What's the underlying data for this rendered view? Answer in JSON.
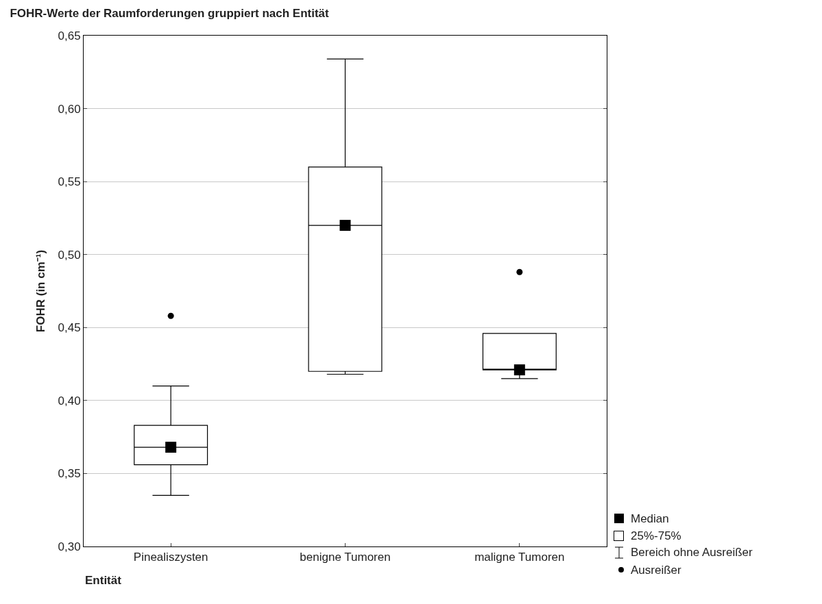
{
  "chart_data": {
    "type": "box",
    "title": "FOHR-Werte der Raumforderungen gruppiert nach Entität",
    "xlabel": "Entität",
    "ylabel": "FOHR (in cm⁻¹)",
    "categories": [
      "Pinealiszysten",
      "benigne Tumoren",
      "maligne Tumoren"
    ],
    "boxes": [
      {
        "low": 0.335,
        "q1": 0.356,
        "median": 0.368,
        "q3": 0.383,
        "high": 0.41,
        "outliers": [
          0.458
        ]
      },
      {
        "low": 0.418,
        "q1": 0.42,
        "median": 0.52,
        "q3": 0.56,
        "high": 0.634
      },
      {
        "low": 0.415,
        "q1": 0.421,
        "median": 0.421,
        "q3": 0.446,
        "high": 0.446,
        "outliers": [
          0.488
        ]
      }
    ],
    "color": "#000000",
    "ylim": [
      0.3,
      0.65
    ],
    "yticks": [
      {
        "value": 0.3,
        "label": "0,30"
      },
      {
        "value": 0.35,
        "label": "0,35"
      },
      {
        "value": 0.4,
        "label": "0,40"
      },
      {
        "value": 0.45,
        "label": "0,45"
      },
      {
        "value": 0.5,
        "label": "0,50"
      },
      {
        "value": 0.55,
        "label": "0,55"
      },
      {
        "value": 0.6,
        "label": "0,60"
      },
      {
        "value": 0.65,
        "label": "0,65"
      }
    ],
    "grid": "y",
    "series": [
      {
        "type": "scatter",
        "name": "Median",
        "marker": "square",
        "color": "#000000",
        "x": [
          "Pinealiszysten",
          "benigne Tumoren",
          "maligne Tumoren"
        ],
        "values": [
          0.368,
          0.52,
          0.421
        ]
      }
    ],
    "annotations": [
      "25%-75%",
      "Bereich ohne Ausreißer",
      "Ausreißer"
    ]
  }
}
